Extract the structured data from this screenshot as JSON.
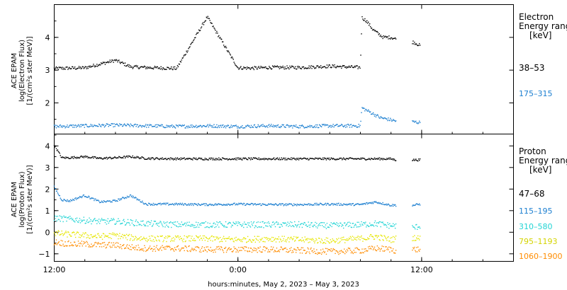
{
  "chart_data": [
    {
      "type": "scatter",
      "panel": "electron",
      "ylabel_lines": [
        "ACE EPAM",
        "log(Electron Flux)",
        "[1/(cm²s ster MeV)]"
      ],
      "ylim": [
        1.05,
        5.0
      ],
      "yticks": [
        2,
        3,
        4
      ],
      "ytick_labels": [
        "2",
        "3",
        "4"
      ],
      "legend_title": [
        "Electron",
        "Energy ranges",
        "[keV]"
      ],
      "series": [
        {
          "name": "38–53",
          "color": "#000000",
          "x": [
            0,
            2,
            4,
            5,
            6,
            8,
            10,
            12,
            13,
            14,
            16,
            18,
            20,
            20.1,
            20.4,
            20.8,
            21.2,
            21.5,
            22,
            22.3,
            22.6,
            23.5,
            23.9
          ],
          "y": [
            3.05,
            3.07,
            3.3,
            3.1,
            3.08,
            3.05,
            4.62,
            3.07,
            3.06,
            3.08,
            3.08,
            3.12,
            3.08,
            4.6,
            4.5,
            4.25,
            4.1,
            4.0,
            4.0,
            3.95,
            3.9,
            3.85,
            3.75
          ]
        },
        {
          "name": "175–315",
          "color": "#1c7fd0",
          "x": [
            0,
            2,
            4,
            6,
            8,
            10,
            12,
            14,
            16,
            18,
            20,
            20.1,
            20.5,
            20.9,
            21.3,
            21.8,
            22.3,
            23.5,
            23.9
          ],
          "y": [
            1.28,
            1.3,
            1.32,
            1.3,
            1.28,
            1.3,
            1.28,
            1.3,
            1.28,
            1.3,
            1.3,
            1.85,
            1.75,
            1.65,
            1.55,
            1.5,
            1.45,
            1.42,
            1.4
          ]
        }
      ]
    },
    {
      "type": "scatter",
      "panel": "proton",
      "ylabel_lines": [
        "ACE EPAM",
        "log(Proton Flux)",
        "[1/(cm²s ster MeV)]"
      ],
      "ylim": [
        -1.35,
        4.55
      ],
      "yticks": [
        -1,
        0,
        1,
        2,
        3,
        4
      ],
      "ytick_labels": [
        "−1",
        "0",
        "1",
        "2",
        "3",
        "4"
      ],
      "legend_title": [
        "Proton",
        "Energy ranges",
        "[keV]"
      ],
      "series": [
        {
          "name": "47–68",
          "color": "#000000",
          "x": [
            0,
            0.5,
            1,
            2,
            3,
            4,
            5,
            6,
            8,
            10,
            12,
            14,
            16,
            18,
            20,
            21,
            22,
            22.3,
            23.5,
            23.9
          ],
          "y": [
            4.05,
            3.45,
            3.45,
            3.5,
            3.42,
            3.45,
            3.5,
            3.42,
            3.4,
            3.4,
            3.4,
            3.4,
            3.4,
            3.4,
            3.4,
            3.4,
            3.4,
            3.35,
            3.35,
            3.35
          ]
        },
        {
          "name": "115–195",
          "color": "#1c7fd0",
          "x": [
            0,
            0.5,
            1,
            2,
            3,
            4,
            5,
            6,
            8,
            10,
            12,
            14,
            16,
            18,
            20,
            21,
            22,
            22.3,
            23.5,
            23.9
          ],
          "y": [
            2.1,
            1.5,
            1.45,
            1.7,
            1.4,
            1.45,
            1.7,
            1.3,
            1.3,
            1.28,
            1.3,
            1.28,
            1.28,
            1.3,
            1.28,
            1.4,
            1.25,
            1.25,
            1.25,
            1.3
          ]
        },
        {
          "name": "310–580",
          "color": "#22d4d4",
          "x": [
            0,
            1,
            2,
            3,
            4,
            5,
            6,
            8,
            10,
            12,
            14,
            16,
            18,
            20,
            21,
            22,
            22.3,
            23.5,
            23.9
          ],
          "y": [
            0.65,
            0.6,
            0.55,
            0.5,
            0.5,
            0.45,
            0.4,
            0.35,
            0.35,
            0.35,
            0.35,
            0.35,
            0.3,
            0.35,
            0.4,
            0.3,
            0.3,
            0.2,
            0.3
          ]
        },
        {
          "name": "795–1193",
          "color": "#e6e600",
          "x": [
            0,
            1,
            2,
            3,
            4,
            5,
            6,
            8,
            10,
            12,
            14,
            16,
            18,
            20,
            21,
            22,
            22.3,
            23.5,
            23.9
          ],
          "y": [
            -0.05,
            -0.1,
            -0.15,
            -0.2,
            -0.15,
            -0.25,
            -0.3,
            -0.3,
            -0.3,
            -0.35,
            -0.3,
            -0.35,
            -0.4,
            -0.3,
            -0.2,
            -0.35,
            -0.3,
            -0.25,
            -0.3
          ]
        },
        {
          "name": "1060–1900",
          "color": "#ff8c00",
          "x": [
            0,
            1,
            2,
            3,
            4,
            5,
            6,
            8,
            10,
            12,
            14,
            16,
            18,
            20,
            21,
            22,
            22.3,
            23.5,
            23.9
          ],
          "y": [
            -0.45,
            -0.55,
            -0.55,
            -0.6,
            -0.6,
            -0.7,
            -0.75,
            -0.75,
            -0.8,
            -0.8,
            -0.8,
            -0.85,
            -0.9,
            -0.85,
            -0.75,
            -0.8,
            -0.85,
            -0.8,
            -0.8
          ]
        }
      ]
    }
  ],
  "x_axis": {
    "range_hours": [
      0,
      30
    ],
    "ticks": [
      0,
      12,
      24
    ],
    "tick_labels": [
      "12:00",
      "0:00",
      "12:00"
    ],
    "title": "hours:minutes, May  2, 2023 – May  3, 2023"
  },
  "gaps_hours": [
    [
      22.35,
      23.4
    ]
  ]
}
